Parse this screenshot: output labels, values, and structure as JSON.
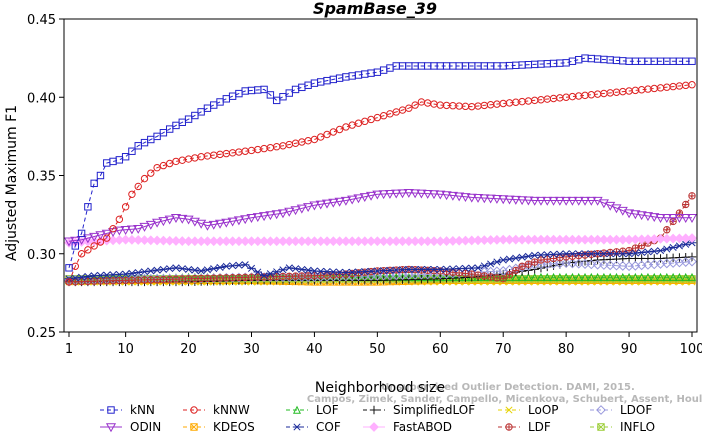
{
  "chart_data": {
    "type": "line",
    "title": "SpamBase_39",
    "xlabel": "Neighborhood size",
    "ylabel": "Adjusted Maximum F1",
    "xlim": [
      1,
      100
    ],
    "ylim": [
      0.25,
      0.45
    ],
    "x_ticks": [
      1,
      10,
      20,
      30,
      40,
      50,
      60,
      70,
      80,
      90,
      100
    ],
    "y_ticks": [
      "0.25",
      "0.30",
      "0.35",
      "0.40",
      "0.45"
    ],
    "grid": false,
    "legend_position": "bottom",
    "watermark": [
      "Campos, Zimek, Sander, Campello, Micenkova, Schubert, Assent, Houle",
      "Unsupervised Outlier Detection. DAMI, 2015."
    ],
    "series": [
      {
        "name": "kNN",
        "color": "#2222cc",
        "marker": "square",
        "dash": "4,3",
        "points": [
          [
            1,
            0.291
          ],
          [
            2,
            0.305
          ],
          [
            3,
            0.313
          ],
          [
            4,
            0.33
          ],
          [
            5,
            0.345
          ],
          [
            6,
            0.35
          ],
          [
            7,
            0.358
          ],
          [
            9,
            0.36
          ],
          [
            10,
            0.362
          ],
          [
            12,
            0.369
          ],
          [
            15,
            0.375
          ],
          [
            18,
            0.382
          ],
          [
            20,
            0.386
          ],
          [
            23,
            0.393
          ],
          [
            26,
            0.399
          ],
          [
            29,
            0.404
          ],
          [
            32,
            0.405
          ],
          [
            34,
            0.398
          ],
          [
            37,
            0.405
          ],
          [
            40,
            0.409
          ],
          [
            45,
            0.413
          ],
          [
            50,
            0.416
          ],
          [
            53,
            0.42
          ],
          [
            60,
            0.42
          ],
          [
            70,
            0.42
          ],
          [
            80,
            0.422
          ],
          [
            83,
            0.425
          ],
          [
            90,
            0.423
          ],
          [
            100,
            0.423
          ]
        ]
      },
      {
        "name": "kNNW",
        "color": "#dd2222",
        "marker": "circle",
        "dash": "4,3",
        "points": [
          [
            1,
            0.282
          ],
          [
            2,
            0.292
          ],
          [
            3,
            0.3
          ],
          [
            5,
            0.305
          ],
          [
            7,
            0.31
          ],
          [
            9,
            0.322
          ],
          [
            11,
            0.338
          ],
          [
            13,
            0.348
          ],
          [
            15,
            0.355
          ],
          [
            18,
            0.359
          ],
          [
            22,
            0.362
          ],
          [
            26,
            0.364
          ],
          [
            30,
            0.366
          ],
          [
            35,
            0.369
          ],
          [
            40,
            0.373
          ],
          [
            45,
            0.381
          ],
          [
            50,
            0.387
          ],
          [
            55,
            0.393
          ],
          [
            57,
            0.397
          ],
          [
            60,
            0.395
          ],
          [
            65,
            0.394
          ],
          [
            70,
            0.396
          ],
          [
            80,
            0.4
          ],
          [
            90,
            0.404
          ],
          [
            100,
            0.408
          ]
        ]
      },
      {
        "name": "LOF",
        "color": "#22bb22",
        "marker": "triangle",
        "dash": "4,3",
        "points": [
          [
            1,
            0.283
          ],
          [
            10,
            0.284
          ],
          [
            20,
            0.285
          ],
          [
            30,
            0.285
          ],
          [
            40,
            0.285
          ],
          [
            50,
            0.285
          ],
          [
            60,
            0.285
          ],
          [
            70,
            0.285
          ],
          [
            80,
            0.285
          ],
          [
            90,
            0.285
          ],
          [
            100,
            0.285
          ]
        ]
      },
      {
        "name": "SimplifiedLOF",
        "color": "#111111",
        "marker": "plus",
        "dash": "4,3",
        "points": [
          [
            1,
            0.282
          ],
          [
            10,
            0.282
          ],
          [
            20,
            0.282
          ],
          [
            30,
            0.283
          ],
          [
            40,
            0.283
          ],
          [
            50,
            0.283
          ],
          [
            60,
            0.284
          ],
          [
            65,
            0.285
          ],
          [
            70,
            0.287
          ],
          [
            75,
            0.29
          ],
          [
            80,
            0.294
          ],
          [
            85,
            0.296
          ],
          [
            90,
            0.297
          ],
          [
            95,
            0.297
          ],
          [
            100,
            0.298
          ]
        ]
      },
      {
        "name": "LoOP",
        "color": "#e6d200",
        "marker": "x",
        "dash": "4,3",
        "points": [
          [
            1,
            0.282
          ],
          [
            10,
            0.282
          ],
          [
            20,
            0.282
          ],
          [
            30,
            0.282
          ],
          [
            40,
            0.282
          ],
          [
            50,
            0.282
          ],
          [
            60,
            0.282
          ],
          [
            70,
            0.282
          ],
          [
            80,
            0.282
          ],
          [
            90,
            0.282
          ],
          [
            100,
            0.282
          ]
        ]
      },
      {
        "name": "LDOF",
        "color": "#9999dd",
        "marker": "diamond",
        "dash": "4,3",
        "points": [
          [
            1,
            0.283
          ],
          [
            10,
            0.284
          ],
          [
            20,
            0.284
          ],
          [
            30,
            0.285
          ],
          [
            40,
            0.285
          ],
          [
            50,
            0.286
          ],
          [
            60,
            0.287
          ],
          [
            70,
            0.289
          ],
          [
            75,
            0.293
          ],
          [
            80,
            0.294
          ],
          [
            90,
            0.292
          ],
          [
            100,
            0.295
          ]
        ]
      },
      {
        "name": "ODIN",
        "color": "#9933cc",
        "marker": "triangle-down",
        "dash": "",
        "points": [
          [
            1,
            0.308
          ],
          [
            3,
            0.309
          ],
          [
            5,
            0.311
          ],
          [
            7,
            0.313
          ],
          [
            9,
            0.315
          ],
          [
            12,
            0.316
          ],
          [
            15,
            0.32
          ],
          [
            18,
            0.323
          ],
          [
            20,
            0.322
          ],
          [
            23,
            0.318
          ],
          [
            26,
            0.32
          ],
          [
            30,
            0.323
          ],
          [
            35,
            0.326
          ],
          [
            40,
            0.331
          ],
          [
            45,
            0.334
          ],
          [
            50,
            0.338
          ],
          [
            55,
            0.339
          ],
          [
            60,
            0.338
          ],
          [
            65,
            0.336
          ],
          [
            70,
            0.335
          ],
          [
            75,
            0.334
          ],
          [
            80,
            0.334
          ],
          [
            85,
            0.334
          ],
          [
            90,
            0.326
          ],
          [
            95,
            0.323
          ],
          [
            100,
            0.323
          ]
        ]
      },
      {
        "name": "KDEOS",
        "color": "#ffaa00",
        "marker": "square-x",
        "dash": "4,3",
        "points": [
          [
            1,
            0.283
          ],
          [
            10,
            0.283
          ],
          [
            20,
            0.283
          ],
          [
            30,
            0.283
          ],
          [
            40,
            0.282
          ],
          [
            50,
            0.282
          ],
          [
            60,
            0.283
          ],
          [
            70,
            0.283
          ],
          [
            80,
            0.283
          ],
          [
            90,
            0.283
          ],
          [
            100,
            0.283
          ]
        ]
      },
      {
        "name": "COF",
        "color": "#1a2a99",
        "marker": "asterisk",
        "dash": "4,3",
        "points": [
          [
            1,
            0.284
          ],
          [
            5,
            0.286
          ],
          [
            10,
            0.287
          ],
          [
            14,
            0.289
          ],
          [
            18,
            0.291
          ],
          [
            22,
            0.289
          ],
          [
            26,
            0.292
          ],
          [
            29,
            0.293
          ],
          [
            32,
            0.286
          ],
          [
            36,
            0.291
          ],
          [
            40,
            0.289
          ],
          [
            45,
            0.288
          ],
          [
            50,
            0.289
          ],
          [
            55,
            0.29
          ],
          [
            60,
            0.29
          ],
          [
            66,
            0.291
          ],
          [
            70,
            0.296
          ],
          [
            75,
            0.299
          ],
          [
            80,
            0.3
          ],
          [
            85,
            0.3
          ],
          [
            90,
            0.3
          ],
          [
            95,
            0.302
          ],
          [
            100,
            0.307
          ]
        ]
      },
      {
        "name": "FastABOD",
        "color": "#ffb0ff",
        "marker": "diamond-fill",
        "dash": "",
        "points": [
          [
            1,
            0.307
          ],
          [
            5,
            0.308
          ],
          [
            10,
            0.309
          ],
          [
            20,
            0.308
          ],
          [
            30,
            0.308
          ],
          [
            40,
            0.308
          ],
          [
            50,
            0.308
          ],
          [
            60,
            0.308
          ],
          [
            70,
            0.309
          ],
          [
            80,
            0.309
          ],
          [
            90,
            0.309
          ],
          [
            100,
            0.31
          ]
        ]
      },
      {
        "name": "LDF",
        "color": "#bb3333",
        "marker": "circle-plus",
        "dash": "4,3",
        "points": [
          [
            1,
            0.282
          ],
          [
            10,
            0.283
          ],
          [
            20,
            0.284
          ],
          [
            30,
            0.285
          ],
          [
            40,
            0.286
          ],
          [
            45,
            0.287
          ],
          [
            50,
            0.289
          ],
          [
            55,
            0.29
          ],
          [
            60,
            0.289
          ],
          [
            65,
            0.287
          ],
          [
            70,
            0.284
          ],
          [
            73,
            0.292
          ],
          [
            76,
            0.296
          ],
          [
            80,
            0.298
          ],
          [
            85,
            0.3
          ],
          [
            90,
            0.302
          ],
          [
            95,
            0.31
          ],
          [
            98,
            0.326
          ],
          [
            100,
            0.337
          ]
        ]
      },
      {
        "name": "INFLO",
        "color": "#99cc33",
        "marker": "square-x",
        "dash": "4,3",
        "points": [
          [
            1,
            0.284
          ],
          [
            10,
            0.284
          ],
          [
            20,
            0.284
          ],
          [
            30,
            0.284
          ],
          [
            40,
            0.284
          ],
          [
            50,
            0.284
          ],
          [
            60,
            0.284
          ],
          [
            70,
            0.284
          ],
          [
            80,
            0.284
          ],
          [
            90,
            0.284
          ],
          [
            100,
            0.284
          ]
        ]
      }
    ],
    "legend_order": [
      [
        "kNN",
        "kNNW",
        "LOF",
        "SimplifiedLOF",
        "LoOP",
        "LDOF"
      ],
      [
        "ODIN",
        "KDEOS",
        "COF",
        "FastABOD",
        "LDF",
        "INFLO"
      ]
    ]
  }
}
